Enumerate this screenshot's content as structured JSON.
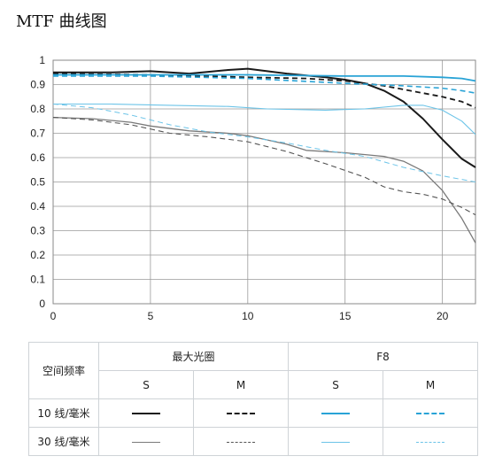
{
  "page": {
    "title": "MTF 曲线图"
  },
  "chart_data": {
    "type": "line",
    "xlabel": "",
    "ylabel": "",
    "xlim": [
      0,
      21.7
    ],
    "ylim": [
      0,
      1
    ],
    "x_ticks": [
      "0",
      "5",
      "10",
      "15",
      "20"
    ],
    "y_ticks": [
      "0",
      "0.1",
      "0.2",
      "0.3",
      "0.4",
      "0.5",
      "0.6",
      "0.7",
      "0.8",
      "0.9",
      "1"
    ],
    "grid": true,
    "series": [
      {
        "id": "maxap_10_S",
        "color": "#1a1a1a",
        "dash": "solid",
        "width": 2,
        "points": [
          [
            0,
            0.95
          ],
          [
            3,
            0.95
          ],
          [
            5,
            0.955
          ],
          [
            7,
            0.945
          ],
          [
            9,
            0.96
          ],
          [
            10,
            0.965
          ],
          [
            12,
            0.945
          ],
          [
            14,
            0.93
          ],
          [
            15,
            0.92
          ],
          [
            16,
            0.905
          ],
          [
            17,
            0.875
          ],
          [
            18,
            0.83
          ],
          [
            19,
            0.76
          ],
          [
            20,
            0.675
          ],
          [
            21,
            0.595
          ],
          [
            21.7,
            0.56
          ]
        ]
      },
      {
        "id": "maxap_10_M",
        "color": "#1a1a1a",
        "dash": "dashed",
        "width": 1.8,
        "points": [
          [
            0,
            0.945
          ],
          [
            5,
            0.94
          ],
          [
            8,
            0.935
          ],
          [
            10,
            0.93
          ],
          [
            13,
            0.925
          ],
          [
            15,
            0.915
          ],
          [
            17,
            0.895
          ],
          [
            18,
            0.88
          ],
          [
            19,
            0.865
          ],
          [
            20,
            0.85
          ],
          [
            21,
            0.83
          ],
          [
            21.7,
            0.805
          ]
        ]
      },
      {
        "id": "f8_10_S",
        "color": "#29a3d6",
        "dash": "solid",
        "width": 1.8,
        "points": [
          [
            0,
            0.94
          ],
          [
            5,
            0.94
          ],
          [
            10,
            0.94
          ],
          [
            15,
            0.935
          ],
          [
            18,
            0.935
          ],
          [
            20,
            0.93
          ],
          [
            21,
            0.925
          ],
          [
            21.7,
            0.915
          ]
        ]
      },
      {
        "id": "f8_10_M",
        "color": "#29a3d6",
        "dash": "dashed",
        "width": 1.6,
        "points": [
          [
            0,
            0.935
          ],
          [
            5,
            0.935
          ],
          [
            10,
            0.925
          ],
          [
            15,
            0.905
          ],
          [
            18,
            0.895
          ],
          [
            20,
            0.885
          ],
          [
            21,
            0.875
          ],
          [
            21.7,
            0.865
          ]
        ]
      },
      {
        "id": "maxap_30_S",
        "color": "#7a7a7a",
        "dash": "solid",
        "width": 1.3,
        "points": [
          [
            0,
            0.765
          ],
          [
            2,
            0.76
          ],
          [
            4,
            0.745
          ],
          [
            5,
            0.73
          ],
          [
            7,
            0.71
          ],
          [
            9,
            0.7
          ],
          [
            10,
            0.69
          ],
          [
            12,
            0.655
          ],
          [
            13,
            0.63
          ],
          [
            15,
            0.62
          ],
          [
            17,
            0.605
          ],
          [
            18,
            0.585
          ],
          [
            19,
            0.545
          ],
          [
            20,
            0.465
          ],
          [
            21,
            0.35
          ],
          [
            21.7,
            0.25
          ]
        ]
      },
      {
        "id": "maxap_30_M",
        "color": "#555555",
        "dash": "dashed",
        "width": 1.1,
        "points": [
          [
            0,
            0.765
          ],
          [
            2,
            0.755
          ],
          [
            4,
            0.735
          ],
          [
            6,
            0.7
          ],
          [
            8,
            0.685
          ],
          [
            10,
            0.665
          ],
          [
            12,
            0.625
          ],
          [
            14,
            0.575
          ],
          [
            16,
            0.52
          ],
          [
            17,
            0.48
          ],
          [
            18,
            0.46
          ],
          [
            19,
            0.45
          ],
          [
            20,
            0.43
          ],
          [
            21,
            0.395
          ],
          [
            21.7,
            0.365
          ]
        ]
      },
      {
        "id": "f8_30_S",
        "color": "#6cc4e8",
        "dash": "solid",
        "width": 1.1,
        "points": [
          [
            0,
            0.82
          ],
          [
            3,
            0.82
          ],
          [
            6,
            0.815
          ],
          [
            9,
            0.81
          ],
          [
            11,
            0.8
          ],
          [
            14,
            0.795
          ],
          [
            16,
            0.8
          ],
          [
            18,
            0.815
          ],
          [
            19,
            0.815
          ],
          [
            20,
            0.795
          ],
          [
            21,
            0.75
          ],
          [
            21.7,
            0.695
          ]
        ]
      },
      {
        "id": "f8_30_M",
        "color": "#6cc4e8",
        "dash": "dashed",
        "width": 1,
        "points": [
          [
            0,
            0.82
          ],
          [
            2,
            0.805
          ],
          [
            4,
            0.775
          ],
          [
            6,
            0.735
          ],
          [
            8,
            0.705
          ],
          [
            10,
            0.685
          ],
          [
            12,
            0.66
          ],
          [
            14,
            0.63
          ],
          [
            16,
            0.605
          ],
          [
            18,
            0.56
          ],
          [
            20,
            0.525
          ],
          [
            21.7,
            0.5
          ]
        ]
      }
    ]
  },
  "legend_table": {
    "row_header": "空间频率",
    "group_1": "最大光圈",
    "group_2": "F8",
    "col_s1": "S",
    "col_m1": "M",
    "col_s2": "S",
    "col_m2": "M",
    "row_10": "10 线/毫米",
    "row_30": "30 线/毫米"
  }
}
